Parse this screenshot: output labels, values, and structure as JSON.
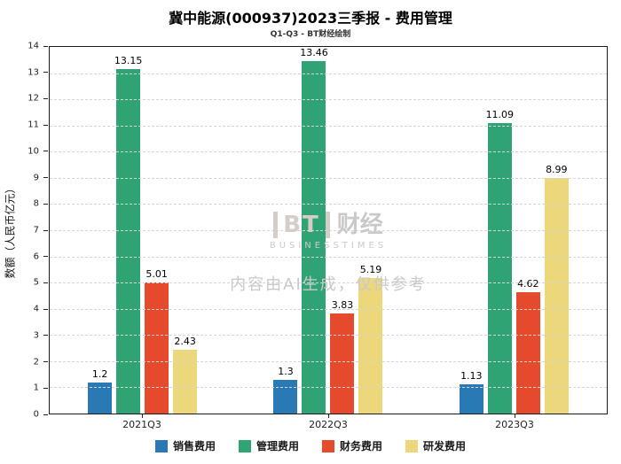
{
  "title": "冀中能源(000937)2023三季报 - 费用管理",
  "subtitle": "Q1-Q3 - BT财经绘制",
  "watermark": {
    "logo": "BT",
    "brand": "财经",
    "sub": "BUSINESSTIMES",
    "disclaimer": "内容由AI生成，仅供参考"
  },
  "chart_data": {
    "type": "bar",
    "categories": [
      "2021Q3",
      "2022Q3",
      "2023Q3"
    ],
    "series": [
      {
        "name": "销售费用",
        "color": "#2979b5",
        "values": [
          1.2,
          1.3,
          1.13
        ]
      },
      {
        "name": "管理费用",
        "color": "#30a375",
        "values": [
          13.15,
          13.46,
          11.09
        ]
      },
      {
        "name": "财务费用",
        "color": "#e64a2d",
        "values": [
          5.01,
          3.83,
          4.62
        ]
      },
      {
        "name": "研发费用",
        "color": "#ecd87a",
        "values": [
          2.43,
          5.19,
          8.99
        ]
      }
    ],
    "title": "冀中能源(000937)2023三季报 - 费用管理",
    "xlabel": "",
    "ylabel": "数额（人民币亿元）",
    "ylim": [
      0,
      14
    ],
    "ytick_step": 1,
    "grid": true,
    "legend_position": "bottom"
  }
}
